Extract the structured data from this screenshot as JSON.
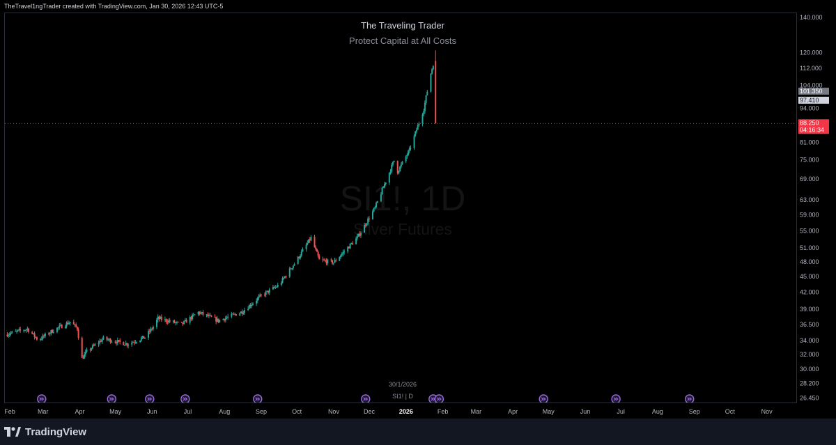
{
  "header": {
    "attribution": "TheTravel1ngTrader created with TradingView.com, Jan 30, 2026 12:43 UTC-5"
  },
  "chart_text": {
    "title": "The Traveling Trader",
    "subtitle": "Protect Capital at All Costs",
    "watermark_symbol": "SI1!, 1D",
    "watermark_name": "Silver Futures",
    "date_label": "30/1/2026",
    "legend_label": "SI1! | D"
  },
  "footer": {
    "brand": "TradingView"
  },
  "colors": {
    "up": "#26a69a",
    "down": "#ef5350",
    "background": "#000000",
    "last_price": "#f23645"
  },
  "chart_data": {
    "type": "candlestick",
    "y_scale": "log",
    "ylim": [
      26.0,
      143.0
    ],
    "price_ticks": [
      "140.000",
      "120.000",
      "112.000",
      "104.000",
      "94.000",
      "81.000",
      "75.000",
      "69.000",
      "63.000",
      "59.000",
      "55.000",
      "51.000",
      "48.000",
      "45.000",
      "42.000",
      "39.000",
      "36.500",
      "34.000",
      "32.000",
      "30.000",
      "28.200",
      "26.450"
    ],
    "price_labels": [
      {
        "value": 101.35,
        "text": "101.350",
        "style": "gray"
      },
      {
        "value": 97.41,
        "text": "97.410",
        "style": "light"
      },
      {
        "value": 88.25,
        "text": "88.250",
        "style": "red",
        "sub": "04:16:34"
      }
    ],
    "time_ticks": [
      "Feb",
      "Mar",
      "Apr",
      "May",
      "Jun",
      "Jul",
      "Aug",
      "Sep",
      "Oct",
      "Nov",
      "Dec",
      "2026",
      "Feb",
      "Mar",
      "Apr",
      "May",
      "Jun",
      "Jul",
      "Aug",
      "Sep",
      "Oct",
      "Nov"
    ],
    "time_start": "2025-02-01",
    "time_end": "2026-11-30",
    "events": [
      "2025-03-04",
      "2025-05-02",
      "2025-06-03",
      "2025-07-03",
      "2025-09-02",
      "2025-12-02",
      "2026-01-28",
      "2026-02-02",
      "2026-05-01",
      "2026-07-01",
      "2026-09-01"
    ],
    "keypoints": [
      {
        "date": "2025-02-01",
        "price": 35.0
      },
      {
        "date": "2025-02-20",
        "price": 35.9
      },
      {
        "date": "2025-03-01",
        "price": 34.2
      },
      {
        "date": "2025-03-15",
        "price": 35.8
      },
      {
        "date": "2025-03-28",
        "price": 37.0
      },
      {
        "date": "2025-04-03",
        "price": 36.0
      },
      {
        "date": "2025-04-07",
        "price": 31.5
      },
      {
        "date": "2025-04-11",
        "price": 32.5
      },
      {
        "date": "2025-04-25",
        "price": 34.4
      },
      {
        "date": "2025-05-15",
        "price": 33.6
      },
      {
        "date": "2025-05-30",
        "price": 34.6
      },
      {
        "date": "2025-06-06",
        "price": 36.2
      },
      {
        "date": "2025-06-10",
        "price": 37.6
      },
      {
        "date": "2025-06-30",
        "price": 36.6
      },
      {
        "date": "2025-07-14",
        "price": 38.6
      },
      {
        "date": "2025-07-31",
        "price": 37.2
      },
      {
        "date": "2025-08-20",
        "price": 38.7
      },
      {
        "date": "2025-09-05",
        "price": 41.5
      },
      {
        "date": "2025-09-20",
        "price": 43.5
      },
      {
        "date": "2025-10-05",
        "price": 48.5
      },
      {
        "date": "2025-10-17",
        "price": 53.5
      },
      {
        "date": "2025-10-24",
        "price": 48.5
      },
      {
        "date": "2025-11-05",
        "price": 48.0
      },
      {
        "date": "2025-11-25",
        "price": 53.5
      },
      {
        "date": "2025-12-10",
        "price": 61.0
      },
      {
        "date": "2025-12-26",
        "price": 75.0
      },
      {
        "date": "2025-12-29",
        "price": 71.5
      },
      {
        "date": "2026-01-08",
        "price": 78.5
      },
      {
        "date": "2026-01-20",
        "price": 94.0
      },
      {
        "date": "2026-01-26",
        "price": 110.0
      },
      {
        "date": "2026-01-28",
        "price": 114.5
      }
    ],
    "last_candle": {
      "date": "2026-01-30",
      "open": 116.0,
      "high": 121.5,
      "low": 88.25,
      "close": 88.25
    }
  }
}
